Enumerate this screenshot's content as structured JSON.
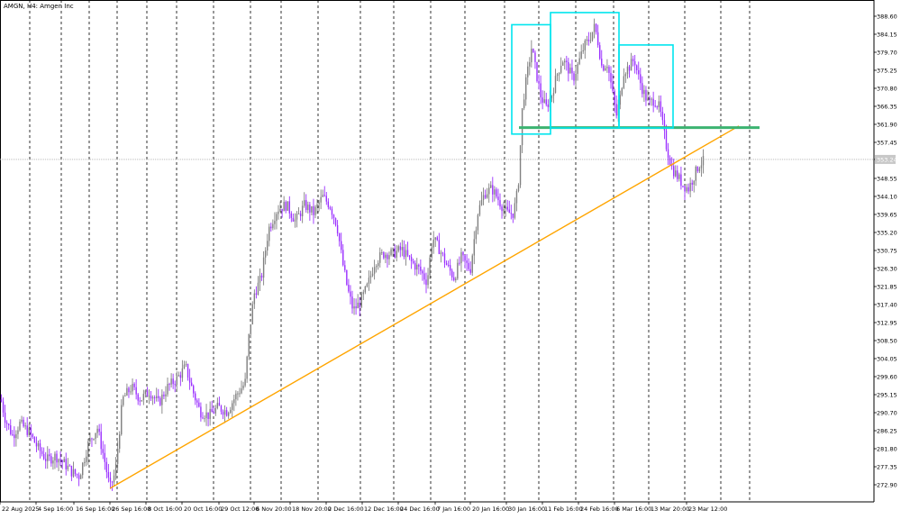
{
  "chart_title": "AMGN, H4:  Amgen Inc",
  "current_price_label": "353.24",
  "colors": {
    "background": "#ffffff",
    "grid": "#000000",
    "bull_candle": "#808080",
    "bear_candle": "#9b30ff",
    "trendline": "#ffa500",
    "neckline": "#3cb371",
    "pattern_boxes": "#00e5ee",
    "axis_text": "#000000"
  },
  "chart_data": {
    "type": "candlestick",
    "symbol": "AMGN",
    "timeframe": "H4",
    "instrument_name": "Amgen Inc",
    "y_range": [
      270,
      390
    ],
    "y_ticks": [
      "388.60",
      "384.15",
      "379.70",
      "375.25",
      "370.80",
      "366.35",
      "361.90",
      "357.45",
      "353.24",
      "348.55",
      "344.10",
      "339.65",
      "335.20",
      "330.75",
      "326.30",
      "321.85",
      "317.40",
      "312.95",
      "308.50",
      "304.05",
      "299.60",
      "295.15",
      "290.70",
      "286.25",
      "281.80",
      "277.35",
      "272.90"
    ],
    "x_ticks": [
      "22 Aug 2025",
      "4 Sep 16:00",
      "16 Sep 16:00",
      "26 Sep 16:00",
      "8 Oct 16:00",
      "20 Oct 16:00",
      "29 Oct 12:00",
      "6 Nov 20:00",
      "18 Nov 20:00",
      "2 Dec 16:00",
      "12 Dec 16:00",
      "24 Dec 16:00",
      "7 Jan 16:00",
      "20 Jan 16:00",
      "30 Jan 16:00",
      "11 Feb 16:00",
      "24 Feb 16:00",
      "6 Mar 16:00",
      "13 Mar 20:00",
      "23 Mar 12:00"
    ],
    "price_anchors": [
      [
        0,
        295
      ],
      [
        6,
        289
      ],
      [
        14,
        285
      ],
      [
        22,
        288
      ],
      [
        32,
        286
      ],
      [
        42,
        282
      ],
      [
        52,
        279
      ],
      [
        62,
        280
      ],
      [
        72,
        278
      ],
      [
        80,
        276
      ],
      [
        88,
        275
      ],
      [
        98,
        283
      ],
      [
        108,
        287
      ],
      [
        116,
        279
      ],
      [
        122,
        272
      ],
      [
        128,
        276
      ],
      [
        136,
        294
      ],
      [
        146,
        297
      ],
      [
        156,
        294
      ],
      [
        166,
        296
      ],
      [
        176,
        293
      ],
      [
        186,
        297
      ],
      [
        196,
        299
      ],
      [
        206,
        302
      ],
      [
        214,
        296
      ],
      [
        222,
        291
      ],
      [
        232,
        290
      ],
      [
        242,
        292
      ],
      [
        252,
        291
      ],
      [
        262,
        295
      ],
      [
        272,
        298
      ],
      [
        276,
        309
      ],
      [
        282,
        320
      ],
      [
        290,
        324
      ],
      [
        298,
        336
      ],
      [
        308,
        341
      ],
      [
        318,
        342
      ],
      [
        328,
        338
      ],
      [
        338,
        342
      ],
      [
        348,
        340
      ],
      [
        358,
        344
      ],
      [
        366,
        342
      ],
      [
        374,
        337
      ],
      [
        380,
        328
      ],
      [
        386,
        321
      ],
      [
        392,
        316
      ],
      [
        400,
        318
      ],
      [
        408,
        322
      ],
      [
        416,
        328
      ],
      [
        426,
        330
      ],
      [
        436,
        330
      ],
      [
        446,
        331
      ],
      [
        456,
        328
      ],
      [
        466,
        326
      ],
      [
        474,
        323
      ],
      [
        480,
        334
      ],
      [
        488,
        331
      ],
      [
        496,
        327
      ],
      [
        504,
        324
      ],
      [
        512,
        329
      ],
      [
        522,
        326
      ],
      [
        530,
        340
      ],
      [
        538,
        345
      ],
      [
        546,
        346
      ],
      [
        554,
        343
      ],
      [
        562,
        340
      ],
      [
        570,
        340
      ],
      [
        575,
        346
      ],
      [
        580,
        367
      ],
      [
        585,
        374
      ],
      [
        590,
        381
      ],
      [
        594,
        376
      ],
      [
        600,
        369
      ],
      [
        606,
        366
      ],
      [
        612,
        369
      ],
      [
        618,
        374
      ],
      [
        624,
        378
      ],
      [
        630,
        376
      ],
      [
        636,
        373
      ],
      [
        642,
        377
      ],
      [
        648,
        381
      ],
      [
        654,
        383
      ],
      [
        660,
        386
      ],
      [
        664,
        382
      ],
      [
        668,
        376
      ],
      [
        674,
        377
      ],
      [
        678,
        372
      ],
      [
        684,
        364
      ],
      [
        688,
        368
      ],
      [
        692,
        375
      ],
      [
        698,
        376
      ],
      [
        704,
        378
      ],
      [
        708,
        374
      ],
      [
        714,
        370
      ],
      [
        720,
        367
      ],
      [
        726,
        368
      ],
      [
        732,
        366
      ],
      [
        736,
        361
      ],
      [
        740,
        356
      ],
      [
        746,
        351
      ],
      [
        752,
        349
      ],
      [
        758,
        347
      ],
      [
        764,
        346
      ],
      [
        770,
        349
      ],
      [
        776,
        352
      ],
      [
        782,
        353
      ]
    ],
    "trendline": {
      "from": [
        "26 Sep 16:00",
        272.0
      ],
      "to": [
        "20 Mar",
        361.5
      ]
    },
    "neckline": {
      "from": [
        "30 Jan 16:00",
        361.1
      ],
      "to": [
        "23 Mar 12:00",
        361.1
      ]
    },
    "pattern": "head_and_shoulders",
    "pattern_boxes": [
      {
        "name": "left-shoulder",
        "from": "30 Jan",
        "to": "11 Feb",
        "low": 359.5,
        "high": 386.5
      },
      {
        "name": "head",
        "from": "11 Feb",
        "to": "6 Mar",
        "low": 361.0,
        "high": 389.5
      },
      {
        "name": "right-shoulder",
        "from": "6 Mar",
        "to": "13 Mar",
        "low": 361.0,
        "high": 381.5
      }
    ],
    "last_price": 353.24,
    "grid": true
  }
}
